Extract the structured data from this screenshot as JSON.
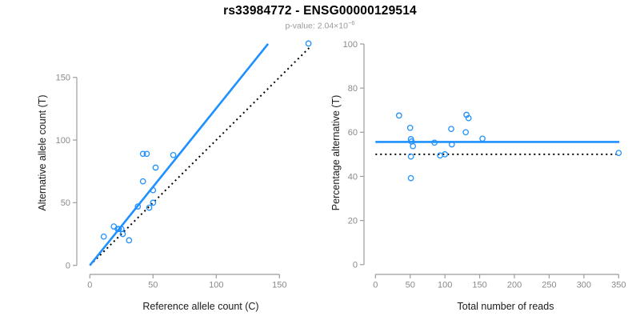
{
  "figure": {
    "title": "rs33984772 - ENSG00000129514",
    "subtitle_prefix": "p-value: 2.04×10",
    "subtitle_exponent": "−6",
    "background_color": "#ffffff",
    "accent_blue": "#1E90FF",
    "axis_color": "#9c9c9c",
    "tick_label_color": "#8a8a8a"
  },
  "chart_data": [
    {
      "type": "scatter",
      "panel": "left",
      "xlabel": "Reference allele count (C)",
      "ylabel": "Alternative allele count (T)",
      "xticks": [
        0,
        50,
        100,
        150
      ],
      "yticks": [
        0,
        50,
        100,
        150
      ],
      "xlim": [
        0,
        175
      ],
      "ylim": [
        0,
        180
      ],
      "grid": false,
      "legend": "none",
      "point_style": {
        "marker": "open-circle",
        "color": "#1E90FF",
        "radius": 3.2
      },
      "points": [
        [
          11,
          23
        ],
        [
          19,
          31
        ],
        [
          22,
          29
        ],
        [
          23,
          29
        ],
        [
          25,
          29
        ],
        [
          26,
          25
        ],
        [
          31,
          20
        ],
        [
          38,
          47
        ],
        [
          47,
          46
        ],
        [
          50,
          50
        ],
        [
          50,
          60
        ],
        [
          42,
          67
        ],
        [
          52,
          78
        ],
        [
          42,
          89
        ],
        [
          45,
          89
        ],
        [
          66,
          88
        ],
        [
          173,
          177
        ]
      ],
      "lines": [
        {
          "name": "regression-line",
          "style": "solid",
          "color": "#1E90FF",
          "width": 2.6,
          "x1": 0,
          "y1": 0,
          "x2": 141,
          "y2": 176.7,
          "slope": 1.25
        },
        {
          "name": "identity-line",
          "style": "dotted",
          "color": "#000000",
          "width": 2,
          "x1": 0,
          "y1": 0,
          "x2": 174,
          "y2": 174,
          "slope": 1
        }
      ]
    },
    {
      "type": "scatter",
      "panel": "right",
      "xlabel": "Total number of reads",
      "ylabel": "Percentage alternative (T)",
      "xticks": [
        0,
        50,
        100,
        150,
        200,
        250,
        300,
        350
      ],
      "yticks": [
        0,
        20,
        40,
        60,
        80,
        100
      ],
      "xlim": [
        0,
        355
      ],
      "ylim": [
        0,
        100
      ],
      "grid": false,
      "legend": "none",
      "point_style": {
        "marker": "open-circle",
        "color": "#1E90FF",
        "radius": 3.2
      },
      "points": [
        [
          34,
          67.6
        ],
        [
          50,
          62.0
        ],
        [
          51,
          56.9
        ],
        [
          52,
          55.8
        ],
        [
          54,
          53.7
        ],
        [
          51,
          49.0
        ],
        [
          51,
          39.2
        ],
        [
          85,
          55.3
        ],
        [
          93,
          49.5
        ],
        [
          100,
          50.0
        ],
        [
          110,
          54.5
        ],
        [
          109,
          61.5
        ],
        [
          130,
          60.0
        ],
        [
          131,
          67.9
        ],
        [
          134,
          66.4
        ],
        [
          154,
          57.1
        ],
        [
          350,
          50.6
        ]
      ],
      "lines": [
        {
          "name": "mean-percentage-line",
          "style": "solid",
          "color": "#1E90FF",
          "width": 2.6,
          "x1": 0,
          "y1": 55.6,
          "x2": 351,
          "y2": 55.6
        },
        {
          "name": "fifty-percent-line",
          "style": "dotted",
          "color": "#000000",
          "width": 2,
          "x1": 0,
          "y1": 50,
          "x2": 348,
          "y2": 50
        }
      ]
    }
  ]
}
